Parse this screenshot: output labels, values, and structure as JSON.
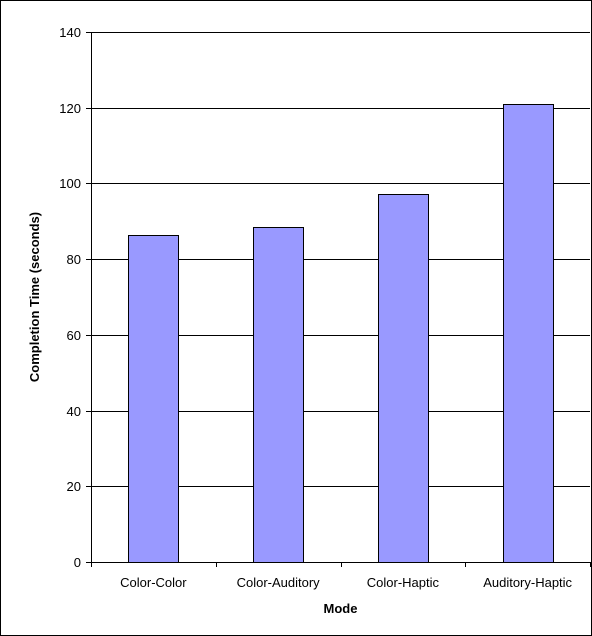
{
  "chart_data": {
    "type": "bar",
    "title": "",
    "xlabel": "Mode",
    "ylabel": "Completion Time (seconds)",
    "categories": [
      "Color-Color",
      "Color-Auditory",
      "Color-Haptic",
      "Auditory-Haptic"
    ],
    "values": [
      86.4,
      88.4,
      97.3,
      121.1
    ],
    "ylim": [
      0,
      140
    ],
    "yticks": [
      0,
      20,
      40,
      60,
      80,
      100,
      120,
      140
    ],
    "grid": true,
    "legend": "none",
    "bar_color": "#9999ff",
    "bar_edge_color": "#000000",
    "plot_background": "#ffffff"
  }
}
